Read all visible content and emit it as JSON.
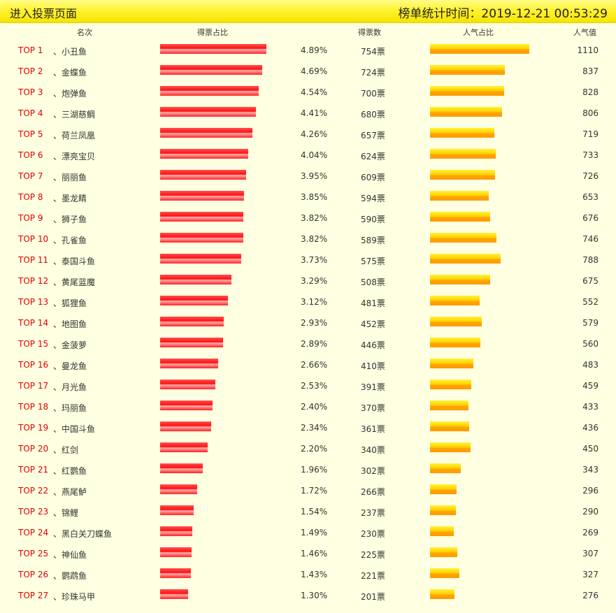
{
  "topbar": {
    "link_label": "进入投票页面",
    "stat_label": "榜单统计时间：2019-12-21 00:53:29"
  },
  "headers": {
    "rank": "名次",
    "vote_share": "得票占比",
    "votes": "得票数",
    "pop_share": "人气占比",
    "pop": "人气值"
  },
  "rows": [
    {
      "rank": "TOP 1",
      "name": "、小丑鱼",
      "pct": "4.89%",
      "votes": "754票",
      "pop": "1110"
    },
    {
      "rank": "TOP 2",
      "name": "、金蝶鱼",
      "pct": "4.69%",
      "votes": "724票",
      "pop": "837"
    },
    {
      "rank": "TOP 3",
      "name": "、炮弹鱼",
      "pct": "4.54%",
      "votes": "700票",
      "pop": "828"
    },
    {
      "rank": "TOP 4",
      "name": "、三湖慈鲷",
      "pct": "4.41%",
      "votes": "680票",
      "pop": "806"
    },
    {
      "rank": "TOP 5",
      "name": "、荷兰凤凰",
      "pct": "4.26%",
      "votes": "657票",
      "pop": "719"
    },
    {
      "rank": "TOP 6",
      "name": "、漂亮宝贝",
      "pct": "4.04%",
      "votes": "624票",
      "pop": "733"
    },
    {
      "rank": "TOP 7",
      "name": "、丽丽鱼",
      "pct": "3.95%",
      "votes": "609票",
      "pop": "726"
    },
    {
      "rank": "TOP 8",
      "name": "、墨龙睛",
      "pct": "3.85%",
      "votes": "594票",
      "pop": "653"
    },
    {
      "rank": "TOP 9",
      "name": "、狮子鱼",
      "pct": "3.82%",
      "votes": "590票",
      "pop": "676"
    },
    {
      "rank": "TOP 10",
      "name": "、孔雀鱼",
      "pct": "3.82%",
      "votes": "589票",
      "pop": "746"
    },
    {
      "rank": "TOP 11",
      "name": "、泰国斗鱼",
      "pct": "3.73%",
      "votes": "575票",
      "pop": "788"
    },
    {
      "rank": "TOP 12",
      "name": "、黄尾蓝魔",
      "pct": "3.29%",
      "votes": "508票",
      "pop": "675"
    },
    {
      "rank": "TOP 13",
      "name": "、狐狸鱼",
      "pct": "3.12%",
      "votes": "481票",
      "pop": "552"
    },
    {
      "rank": "TOP 14",
      "name": "、地图鱼",
      "pct": "2.93%",
      "votes": "452票",
      "pop": "579"
    },
    {
      "rank": "TOP 15",
      "name": "、金菠萝",
      "pct": "2.89%",
      "votes": "446票",
      "pop": "560"
    },
    {
      "rank": "TOP 16",
      "name": "、曼龙鱼",
      "pct": "2.66%",
      "votes": "410票",
      "pop": "483"
    },
    {
      "rank": "TOP 17",
      "name": "、月光鱼",
      "pct": "2.53%",
      "votes": "391票",
      "pop": "459"
    },
    {
      "rank": "TOP 18",
      "name": "、玛丽鱼",
      "pct": "2.40%",
      "votes": "370票",
      "pop": "433"
    },
    {
      "rank": "TOP 19",
      "name": "、中国斗鱼",
      "pct": "2.34%",
      "votes": "361票",
      "pop": "436"
    },
    {
      "rank": "TOP 20",
      "name": "、红剑",
      "pct": "2.20%",
      "votes": "340票",
      "pop": "450"
    },
    {
      "rank": "TOP 21",
      "name": "、红鹦鱼",
      "pct": "1.96%",
      "votes": "302票",
      "pop": "343"
    },
    {
      "rank": "TOP 22",
      "name": "、燕尾鲈",
      "pct": "1.72%",
      "votes": "266票",
      "pop": "296"
    },
    {
      "rank": "TOP 23",
      "name": "、锦鲤",
      "pct": "1.54%",
      "votes": "237票",
      "pop": "290"
    },
    {
      "rank": "TOP 24",
      "name": "、黑白关刀蝶鱼",
      "pct": "1.49%",
      "votes": "230票",
      "pop": "269"
    },
    {
      "rank": "TOP 25",
      "name": "、神仙鱼",
      "pct": "1.46%",
      "votes": "225票",
      "pop": "307"
    },
    {
      "rank": "TOP 26",
      "name": "、鹦鹉鱼",
      "pct": "1.43%",
      "votes": "221票",
      "pop": "327"
    },
    {
      "rank": "TOP 27",
      "name": "、珍珠马甲",
      "pct": "1.30%",
      "votes": "201票",
      "pop": "276"
    }
  ],
  "colors": {
    "rank_text": "#e00000",
    "vote_bar": "#ff1010",
    "pop_bar": "#ffb000",
    "background": "#ffffe1"
  }
}
